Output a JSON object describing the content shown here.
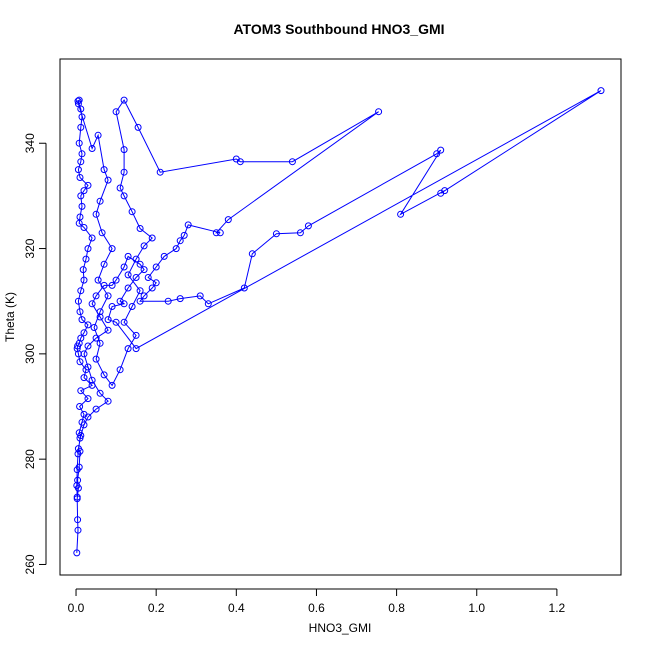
{
  "chart_data": {
    "type": "line",
    "title": "ATOM3 Southbound HNO3_GMI",
    "xlabel": "HNO3_GMI",
    "ylabel": "Theta (K)",
    "xlim": [
      -0.04,
      1.36
    ],
    "ylim": [
      258,
      356
    ],
    "xticks": [
      0.0,
      0.2,
      0.4,
      0.6,
      0.8,
      1.0,
      1.2
    ],
    "xtick_labels": [
      "0.0",
      "0.2",
      "0.4",
      "0.6",
      "0.8",
      "1.0",
      "1.2"
    ],
    "yticks": [
      260,
      280,
      300,
      320,
      340
    ],
    "ytick_labels": [
      "260",
      "280",
      "300",
      "320",
      "340"
    ],
    "grid": false,
    "legend": "none",
    "series_color": "#0000ff",
    "marker": "open-circle",
    "series": [
      {
        "name": "",
        "points": [
          [
            0.002,
            262.2
          ],
          [
            0.005,
            266.5
          ],
          [
            0.004,
            268.5
          ],
          [
            0.003,
            272.5
          ],
          [
            0.006,
            274.5
          ],
          [
            0.004,
            276.0
          ],
          [
            0.008,
            278.5
          ],
          [
            0.01,
            281.5
          ],
          [
            0.006,
            282.0
          ],
          [
            0.012,
            284.5
          ],
          [
            0.008,
            285.0
          ],
          [
            0.015,
            287.0
          ],
          [
            0.02,
            288.5
          ],
          [
            0.009,
            290.0
          ],
          [
            0.03,
            291.5
          ],
          [
            0.012,
            293.0
          ],
          [
            0.04,
            294.0
          ],
          [
            0.02,
            295.5
          ],
          [
            0.025,
            297.0
          ],
          [
            0.01,
            298.5
          ],
          [
            0.006,
            300.0
          ],
          [
            0.003,
            301.0
          ],
          [
            0.004,
            301.5
          ],
          [
            0.008,
            302.0
          ],
          [
            0.012,
            303.0
          ],
          [
            0.02,
            304.0
          ],
          [
            0.03,
            305.5
          ],
          [
            0.015,
            306.5
          ],
          [
            0.01,
            308.0
          ],
          [
            0.006,
            310.0
          ],
          [
            0.012,
            312.0
          ],
          [
            0.02,
            314.0
          ],
          [
            0.018,
            316.0
          ],
          [
            0.025,
            318.0
          ],
          [
            0.03,
            320.0
          ],
          [
            0.04,
            322.0
          ],
          [
            0.02,
            324.0
          ],
          [
            0.008,
            324.8
          ],
          [
            0.01,
            326.0
          ],
          [
            0.015,
            328.0
          ],
          [
            0.012,
            330.0
          ],
          [
            0.02,
            331.0
          ],
          [
            0.03,
            332.0
          ],
          [
            0.01,
            333.5
          ],
          [
            0.006,
            335.0
          ],
          [
            0.012,
            336.5
          ],
          [
            0.015,
            338.0
          ],
          [
            0.008,
            340.0
          ],
          [
            0.012,
            343.0
          ],
          [
            0.015,
            345.0
          ],
          [
            0.012,
            346.5
          ],
          [
            0.005,
            348.0
          ],
          [
            0.008,
            348.2
          ],
          [
            0.006,
            347.5
          ],
          [
            0.04,
            339.0
          ],
          [
            0.055,
            341.5
          ],
          [
            0.07,
            335.0
          ],
          [
            0.08,
            333.0
          ],
          [
            0.06,
            329.0
          ],
          [
            0.05,
            326.5
          ],
          [
            0.065,
            323.0
          ],
          [
            0.09,
            320.0
          ],
          [
            0.07,
            317.0
          ],
          [
            0.055,
            314.0
          ],
          [
            0.08,
            311.0
          ],
          [
            0.06,
            308.0
          ],
          [
            0.045,
            305.0
          ],
          [
            0.06,
            302.0
          ],
          [
            0.05,
            299.0
          ],
          [
            0.07,
            296.0
          ],
          [
            0.09,
            294.0
          ],
          [
            0.11,
            297.0
          ],
          [
            0.13,
            301.0
          ],
          [
            0.15,
            303.5
          ],
          [
            0.12,
            306.0
          ],
          [
            0.14,
            309.0
          ],
          [
            0.16,
            312.0
          ],
          [
            0.13,
            315.0
          ],
          [
            0.15,
            318.0
          ],
          [
            0.17,
            320.5
          ],
          [
            0.19,
            322.0
          ],
          [
            0.16,
            323.8
          ],
          [
            0.14,
            327.0
          ],
          [
            0.12,
            330.0
          ],
          [
            0.11,
            331.5
          ],
          [
            0.12,
            334.5
          ],
          [
            0.12,
            338.8
          ],
          [
            0.1,
            346.0
          ],
          [
            0.12,
            348.2
          ],
          [
            0.155,
            343.0
          ],
          [
            0.21,
            334.5
          ],
          [
            0.4,
            337.0
          ],
          [
            0.41,
            336.5
          ],
          [
            0.54,
            336.5
          ],
          [
            0.755,
            346.0
          ],
          [
            0.38,
            325.5
          ],
          [
            0.35,
            323.0
          ],
          [
            0.36,
            323.0
          ],
          [
            0.28,
            324.5
          ],
          [
            0.27,
            322.5
          ],
          [
            0.26,
            321.5
          ],
          [
            0.25,
            320.0
          ],
          [
            0.22,
            318.5
          ],
          [
            0.2,
            316.5
          ],
          [
            0.18,
            314.5
          ],
          [
            0.2,
            313.5
          ],
          [
            0.19,
            312.5
          ],
          [
            0.17,
            311.0
          ],
          [
            0.16,
            310.0
          ],
          [
            0.23,
            310.0
          ],
          [
            0.26,
            310.5
          ],
          [
            0.31,
            311.0
          ],
          [
            0.33,
            309.5
          ],
          [
            0.42,
            312.5
          ],
          [
            0.44,
            319.0
          ],
          [
            0.5,
            322.8
          ],
          [
            0.56,
            323.0
          ],
          [
            0.58,
            324.3
          ],
          [
            0.9,
            338.0
          ],
          [
            0.91,
            338.7
          ],
          [
            0.81,
            326.5
          ],
          [
            0.92,
            331.0
          ],
          [
            0.91,
            330.5
          ],
          [
            1.31,
            350.0
          ],
          [
            0.15,
            301.0
          ],
          [
            0.1,
            306.0
          ],
          [
            0.08,
            306.5
          ],
          [
            0.09,
            309.0
          ],
          [
            0.12,
            309.5
          ],
          [
            0.11,
            310.0
          ],
          [
            0.13,
            312.5
          ],
          [
            0.15,
            314.5
          ],
          [
            0.17,
            316.0
          ],
          [
            0.16,
            317.0
          ],
          [
            0.13,
            318.5
          ],
          [
            0.12,
            316.5
          ],
          [
            0.1,
            314.0
          ],
          [
            0.09,
            313.0
          ],
          [
            0.07,
            313.0
          ],
          [
            0.05,
            311.0
          ],
          [
            0.04,
            309.5
          ],
          [
            0.06,
            307.0
          ],
          [
            0.08,
            304.5
          ],
          [
            0.05,
            303.0
          ],
          [
            0.03,
            301.5
          ],
          [
            0.02,
            300.0
          ],
          [
            0.03,
            297.5
          ],
          [
            0.04,
            295.0
          ],
          [
            0.06,
            292.5
          ],
          [
            0.08,
            291.0
          ],
          [
            0.05,
            289.5
          ],
          [
            0.03,
            288.0
          ],
          [
            0.02,
            286.5
          ],
          [
            0.01,
            284.0
          ],
          [
            0.005,
            281.0
          ],
          [
            0.003,
            278.0
          ],
          [
            0.002,
            275.0
          ],
          [
            0.003,
            272.8
          ]
        ]
      }
    ]
  }
}
